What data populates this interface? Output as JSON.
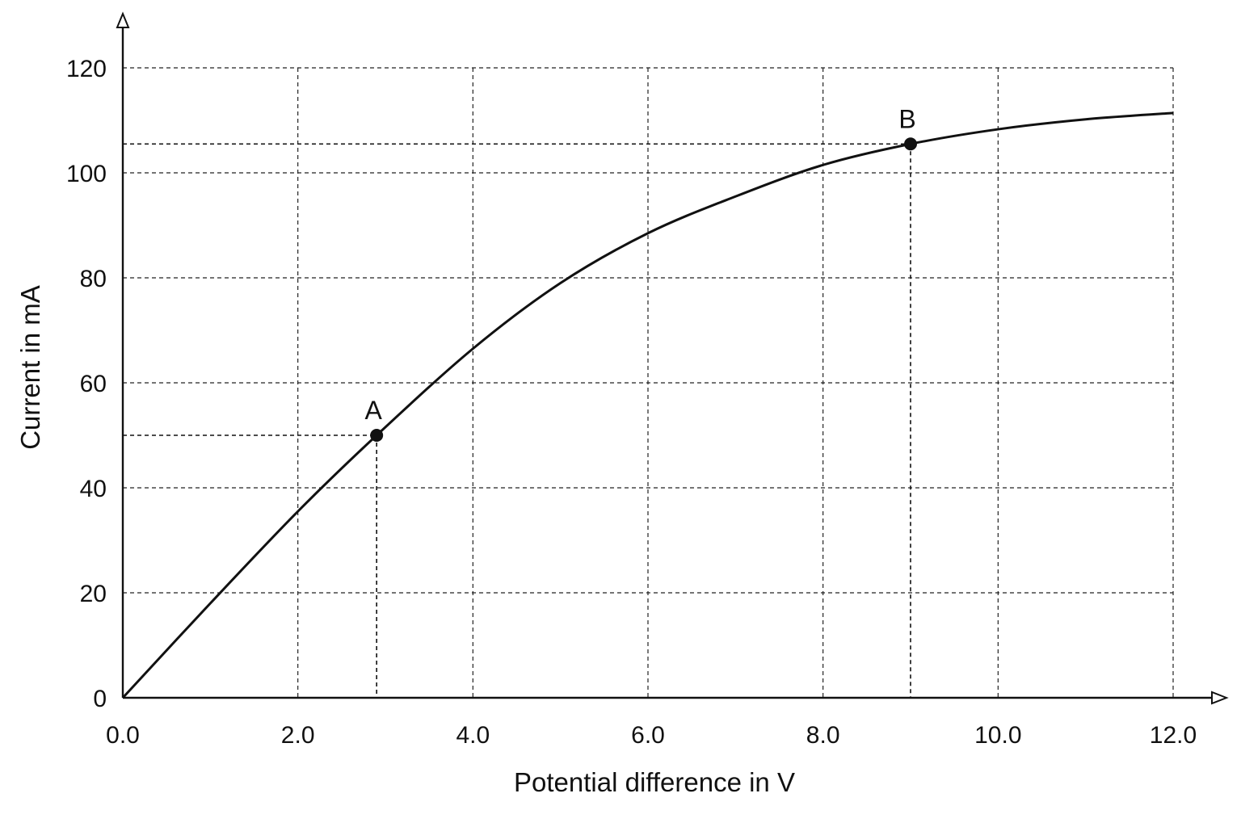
{
  "chart_data": {
    "type": "line",
    "xlabel": "Potential difference in V",
    "ylabel": "Current in mA",
    "xlim": [
      0,
      12
    ],
    "ylim": [
      0,
      120
    ],
    "x_ticks": [
      "0.0",
      "2.0",
      "4.0",
      "6.0",
      "8.0",
      "10.0",
      "12.0"
    ],
    "y_ticks": [
      "0",
      "20",
      "40",
      "60",
      "80",
      "100",
      "120"
    ],
    "x_grid_values": [
      0,
      2,
      4,
      6,
      8,
      10,
      12
    ],
    "y_grid_values": [
      0,
      20,
      40,
      60,
      80,
      100,
      120
    ],
    "grid": true,
    "series": [
      {
        "x": [
          0,
          1,
          2,
          2.9,
          4,
          5,
          6,
          7,
          8,
          9,
          10,
          11,
          12
        ],
        "y": [
          0,
          18,
          35.5,
          50,
          66.5,
          79,
          88.5,
          95.5,
          101.5,
          105.5,
          108.3,
          110.2,
          111.4
        ]
      }
    ],
    "annotations": [
      {
        "label": "A",
        "x": 2.9,
        "y": 50
      },
      {
        "label": "B",
        "x": 9.0,
        "y": 105.5
      }
    ]
  }
}
